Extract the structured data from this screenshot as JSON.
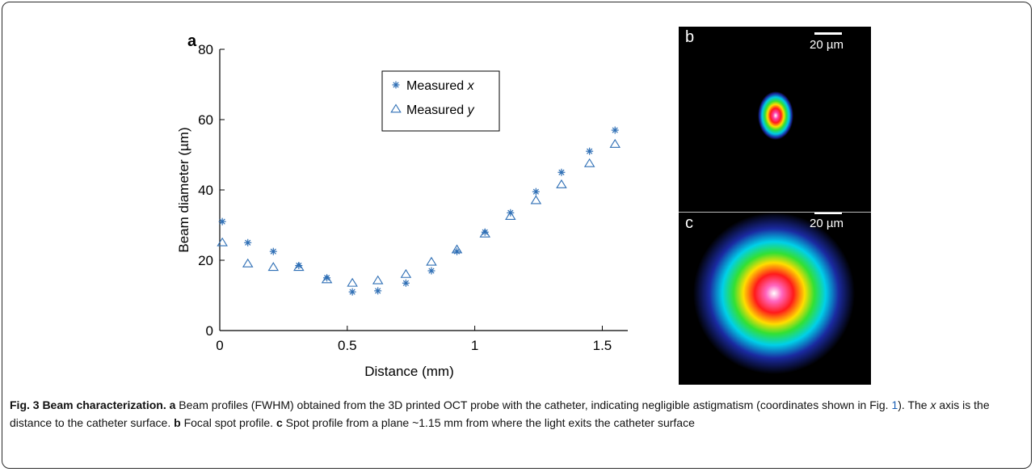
{
  "figure": {
    "panel_a_label": "a",
    "panel_b_label": "b",
    "panel_c_label": "c",
    "scale_b": "20 µm",
    "scale_c": "20 µm"
  },
  "chart_data": {
    "type": "scatter",
    "title": "",
    "xlabel": "Distance (mm)",
    "ylabel": "Beam diameter (µm)",
    "xlim": [
      0,
      1.6
    ],
    "ylim": [
      0,
      80
    ],
    "xticks": [
      0,
      0.5,
      1,
      1.5
    ],
    "xtick_labels": [
      "0",
      "0.5",
      "1",
      "1.5"
    ],
    "yticks": [
      0,
      20,
      40,
      60,
      80
    ],
    "ytick_labels": [
      "0",
      "20",
      "40",
      "60",
      "80"
    ],
    "grid": false,
    "legend_position": "top-center",
    "color": "#2f6fb5",
    "series": [
      {
        "name": "Measured x",
        "legend_prefix": "Measured ",
        "legend_var": "x",
        "marker": "asterisk",
        "x": [
          0.01,
          0.11,
          0.21,
          0.31,
          0.42,
          0.52,
          0.62,
          0.73,
          0.83,
          0.93,
          1.04,
          1.14,
          1.24,
          1.34,
          1.45,
          1.55
        ],
        "y": [
          31,
          25,
          22.5,
          18.5,
          15,
          11,
          11.3,
          13.5,
          17,
          22.5,
          28,
          33.5,
          39.5,
          45,
          51,
          57
        ]
      },
      {
        "name": "Measured y",
        "legend_prefix": "Measured ",
        "legend_var": "y",
        "marker": "triangle",
        "x": [
          0.01,
          0.11,
          0.21,
          0.31,
          0.42,
          0.52,
          0.62,
          0.73,
          0.83,
          0.93,
          1.04,
          1.14,
          1.24,
          1.34,
          1.45,
          1.55
        ],
        "y": [
          25,
          19,
          18,
          18,
          14.5,
          13.5,
          14.2,
          16,
          19.5,
          23,
          27.5,
          32.5,
          37,
          41.5,
          47.5,
          53
        ]
      }
    ]
  },
  "caption": {
    "fig_label": "Fig. 3 Beam characterization.",
    "a_label": "a",
    "a_text_1": " Beam profiles (FWHM) obtained from the 3D printed OCT probe with the catheter, indicating negligible astigmatism (coordinates shown in Fig. ",
    "ref_fig": "1",
    "a_text_2": "). The ",
    "x_var": "x",
    "a_text_3": " axis is the distance to the catheter surface. ",
    "b_label": "b",
    "b_text": " Focal spot profile. ",
    "c_label": "c",
    "c_text": " Spot profile from a plane ~1.15 mm from where the light exits the catheter surface"
  }
}
